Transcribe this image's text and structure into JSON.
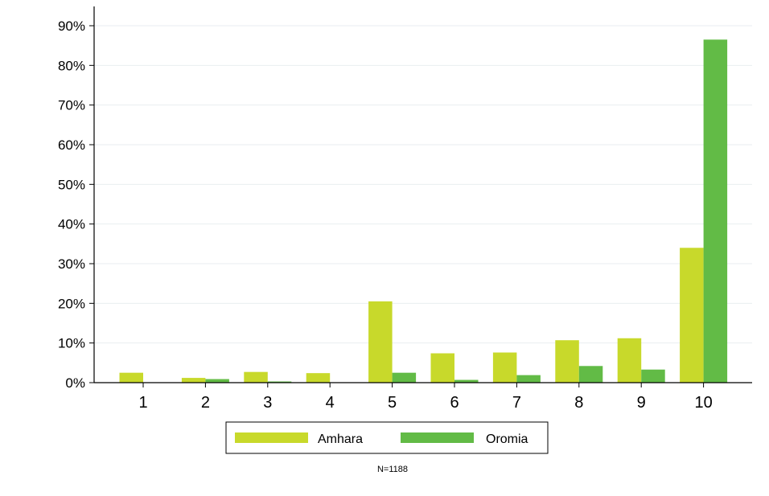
{
  "chart_data": {
    "type": "bar",
    "categories": [
      "1",
      "2",
      "3",
      "4",
      "5",
      "6",
      "7",
      "8",
      "9",
      "10"
    ],
    "series": [
      {
        "name": "Amhara",
        "color": "#c8d92b",
        "values": [
          2.5,
          1.2,
          2.7,
          2.4,
          20.5,
          7.4,
          7.6,
          10.7,
          11.2,
          34.0
        ]
      },
      {
        "name": "Oromia",
        "color": "#62bb46",
        "values": [
          0.0,
          0.9,
          0.3,
          0.0,
          2.5,
          0.7,
          1.9,
          4.2,
          3.3,
          86.5
        ]
      }
    ],
    "ylim": [
      0,
      90
    ],
    "yticks": [
      0,
      10,
      20,
      30,
      40,
      50,
      60,
      70,
      80,
      90
    ],
    "ytick_labels": [
      "0%",
      "10%",
      "20%",
      "30%",
      "40%",
      "50%",
      "60%",
      "70%",
      "80%",
      "90%"
    ],
    "grid": true,
    "legend_position": "bottom",
    "note": "N=1188"
  }
}
